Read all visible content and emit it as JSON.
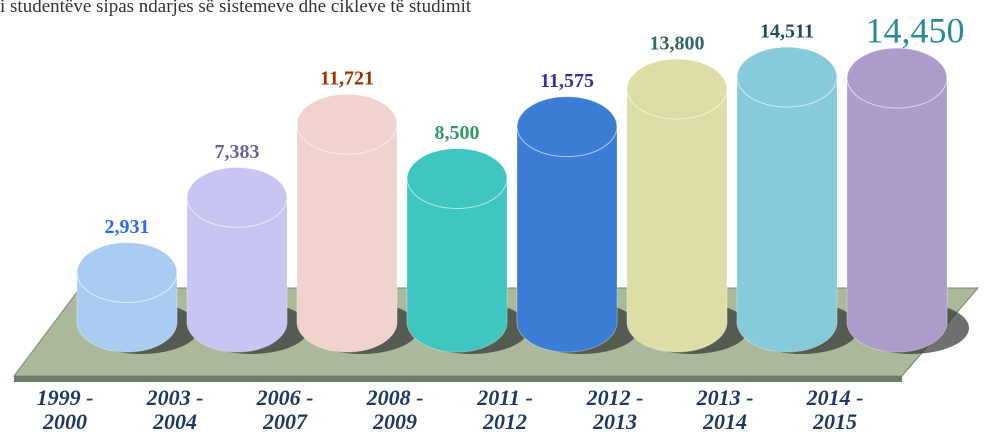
{
  "chart_data": {
    "type": "bar",
    "title": "i studentëve sipas ndarjes së sistemeve dhe cikleve të studimit",
    "categories": [
      "1999 - 2000",
      "2003 - 2004",
      "2006 - 2007",
      "2008 - 2009",
      "2011 - 2012",
      "2012 - 2013",
      "2013 - 2014",
      "2014 - 2015"
    ],
    "values": [
      2931,
      7383,
      11721,
      8500,
      11575,
      13800,
      14511,
      14450
    ],
    "value_labels": [
      "2,931",
      "7,383",
      "11,721",
      "8,500",
      "11,575",
      "13,800",
      "14,511",
      "14,450"
    ],
    "colors": [
      "#a9cdf2",
      "#c9c5f2",
      "#f0d2cf",
      "#3fc6c0",
      "#3b7dd4",
      "#dcdea6",
      "#86cbdb",
      "#ab9ccc"
    ],
    "label_colors": [
      "#3366ff",
      "#666699",
      "#993300",
      "#339966",
      "#333399",
      "#336666",
      "#1f4e5f",
      "#2a8a9a"
    ]
  }
}
